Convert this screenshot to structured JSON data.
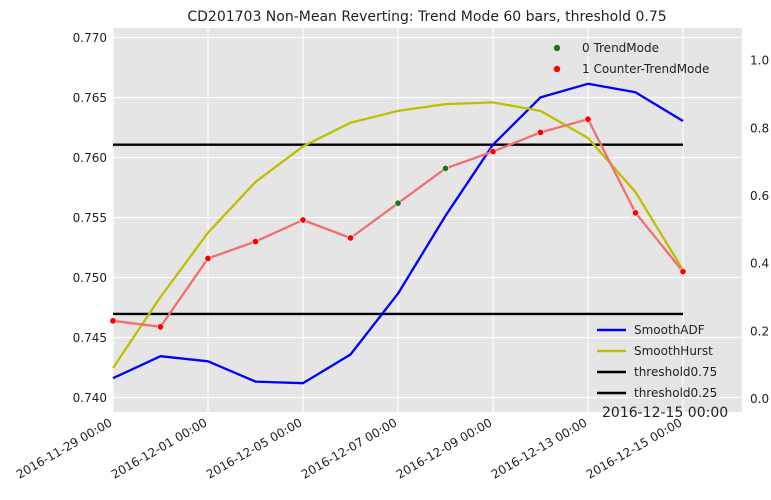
{
  "chart_data": {
    "type": "line",
    "title": "CD201703 Non-Mean Reverting: Trend Mode 60 bars, threshold 0.75",
    "x": [
      "2016-11-29 00:00",
      "2016-11-30 00:00",
      "2016-12-01 00:00",
      "2016-12-02 00:00",
      "2016-12-05 00:00",
      "2016-12-06 00:00",
      "2016-12-07 00:00",
      "2016-12-08 00:00",
      "2016-12-09 00:00",
      "2016-12-12 00:00",
      "2016-12-13 00:00",
      "2016-12-14 00:00",
      "2016-12-15 00:00"
    ],
    "xtick_labels": [
      "2016-11-29 00:00",
      "2016-12-01 00:00",
      "2016-12-05 00:00",
      "2016-12-07 00:00",
      "2016-12-09 00:00",
      "2016-12-13 00:00",
      "2016-12-15 00:00"
    ],
    "corner_label": "2016-12-15 00:00",
    "ylim_left": [
      0.7388,
      0.7708
    ],
    "yticks_left": [
      0.74,
      0.745,
      0.75,
      0.755,
      0.76,
      0.765,
      0.77
    ],
    "ytick_labels_left": [
      "0.740",
      "0.745",
      "0.750",
      "0.755",
      "0.760",
      "0.765",
      "0.770"
    ],
    "ylim_right": [
      -0.04,
      1.095
    ],
    "yticks_right": [
      0.0,
      0.2,
      0.4,
      0.6,
      0.8,
      1.0
    ],
    "ytick_labels_right": [
      "0.0",
      "0.2",
      "0.4",
      "0.6",
      "0.8",
      "1.0"
    ],
    "grid": true,
    "price_series": {
      "values": [
        0.7464,
        0.7459,
        0.7516,
        0.753,
        0.7548,
        0.7533,
        0.7562,
        0.7591,
        0.7605,
        0.7621,
        0.7632,
        0.7554,
        0.7505
      ],
      "color": "#f07070"
    },
    "markers": {
      "trend_mode_indices": [
        6,
        7
      ],
      "counter_trend_indices": [
        0,
        1,
        2,
        3,
        4,
        5,
        8,
        9,
        10,
        11,
        12
      ],
      "trend_color": "#1a7a1a",
      "counter_color": "#ff0000"
    },
    "series": [
      {
        "name": "SmoothADF",
        "axis": "right",
        "color": "#0000ff",
        "values": [
          0.06,
          0.125,
          0.11,
          0.05,
          0.045,
          0.13,
          0.31,
          0.54,
          0.75,
          0.89,
          0.93,
          0.905,
          0.82
        ]
      },
      {
        "name": "SmoothHurst",
        "axis": "right",
        "color": "#bfbf00",
        "values": [
          0.09,
          0.3,
          0.49,
          0.64,
          0.745,
          0.815,
          0.85,
          0.87,
          0.875,
          0.85,
          0.77,
          0.61,
          0.38
        ]
      },
      {
        "name": "threshold0.75",
        "axis": "right",
        "color": "#000000",
        "values": [
          0.75,
          0.75,
          0.75,
          0.75,
          0.75,
          0.75,
          0.75,
          0.75,
          0.75,
          0.75,
          0.75,
          0.75,
          0.75
        ]
      },
      {
        "name": "threshold0.25",
        "axis": "right",
        "color": "#000000",
        "values": [
          0.25,
          0.25,
          0.25,
          0.25,
          0.25,
          0.25,
          0.25,
          0.25,
          0.25,
          0.25,
          0.25,
          0.25,
          0.25
        ]
      }
    ],
    "legend_markers": [
      {
        "label": "0 TrendMode",
        "color": "#1a7a1a"
      },
      {
        "label": "1 Counter-TrendMode",
        "color": "#ff0000"
      }
    ],
    "legend_markers_position": "top-right",
    "legend_lines_position": "bottom-right",
    "background": "#e5e5e5"
  }
}
